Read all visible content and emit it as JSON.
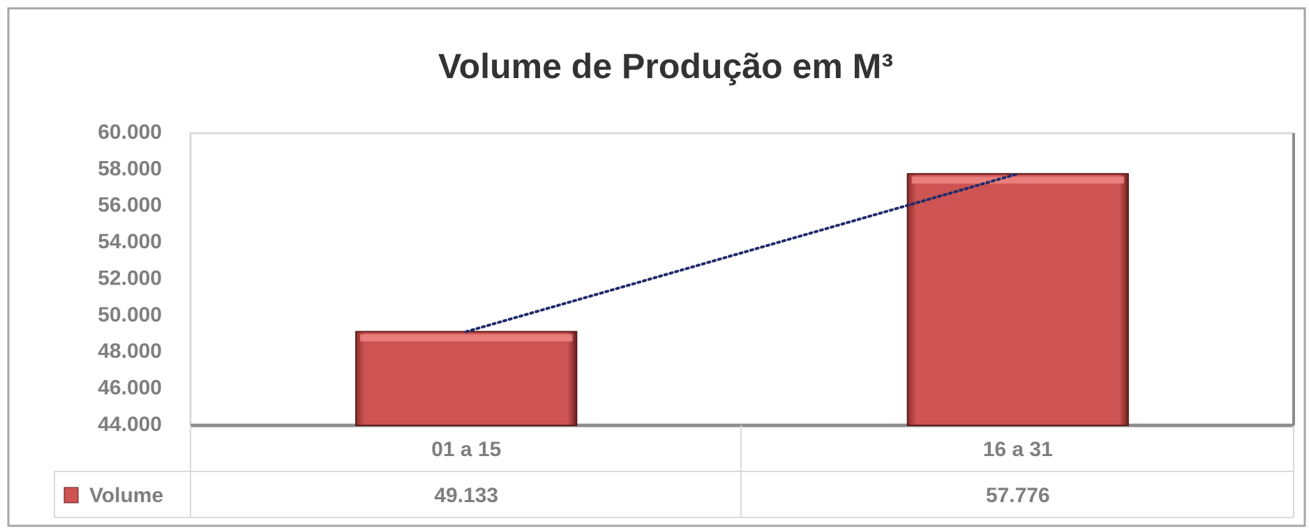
{
  "chart_data": {
    "type": "bar",
    "title": "Volume de Produção em M³",
    "categories": [
      "01 a 15",
      "16 a 31"
    ],
    "series": [
      {
        "name": "Volume",
        "color": "#cd5452",
        "values": [
          49133,
          57776
        ],
        "value_labels": [
          "49.133",
          "57.776"
        ]
      }
    ],
    "trendline": true,
    "ylim": [
      44000,
      60000
    ],
    "yticks": [
      {
        "value": 44000,
        "label": "44.000"
      },
      {
        "value": 46000,
        "label": "46.000"
      },
      {
        "value": 48000,
        "label": "48.000"
      },
      {
        "value": 50000,
        "label": "50.000"
      },
      {
        "value": 52000,
        "label": "52.000"
      },
      {
        "value": 54000,
        "label": "54.000"
      },
      {
        "value": 56000,
        "label": "56.000"
      },
      {
        "value": 58000,
        "label": "58.000"
      },
      {
        "value": 60000,
        "label": "60.000"
      }
    ],
    "grid": false
  }
}
